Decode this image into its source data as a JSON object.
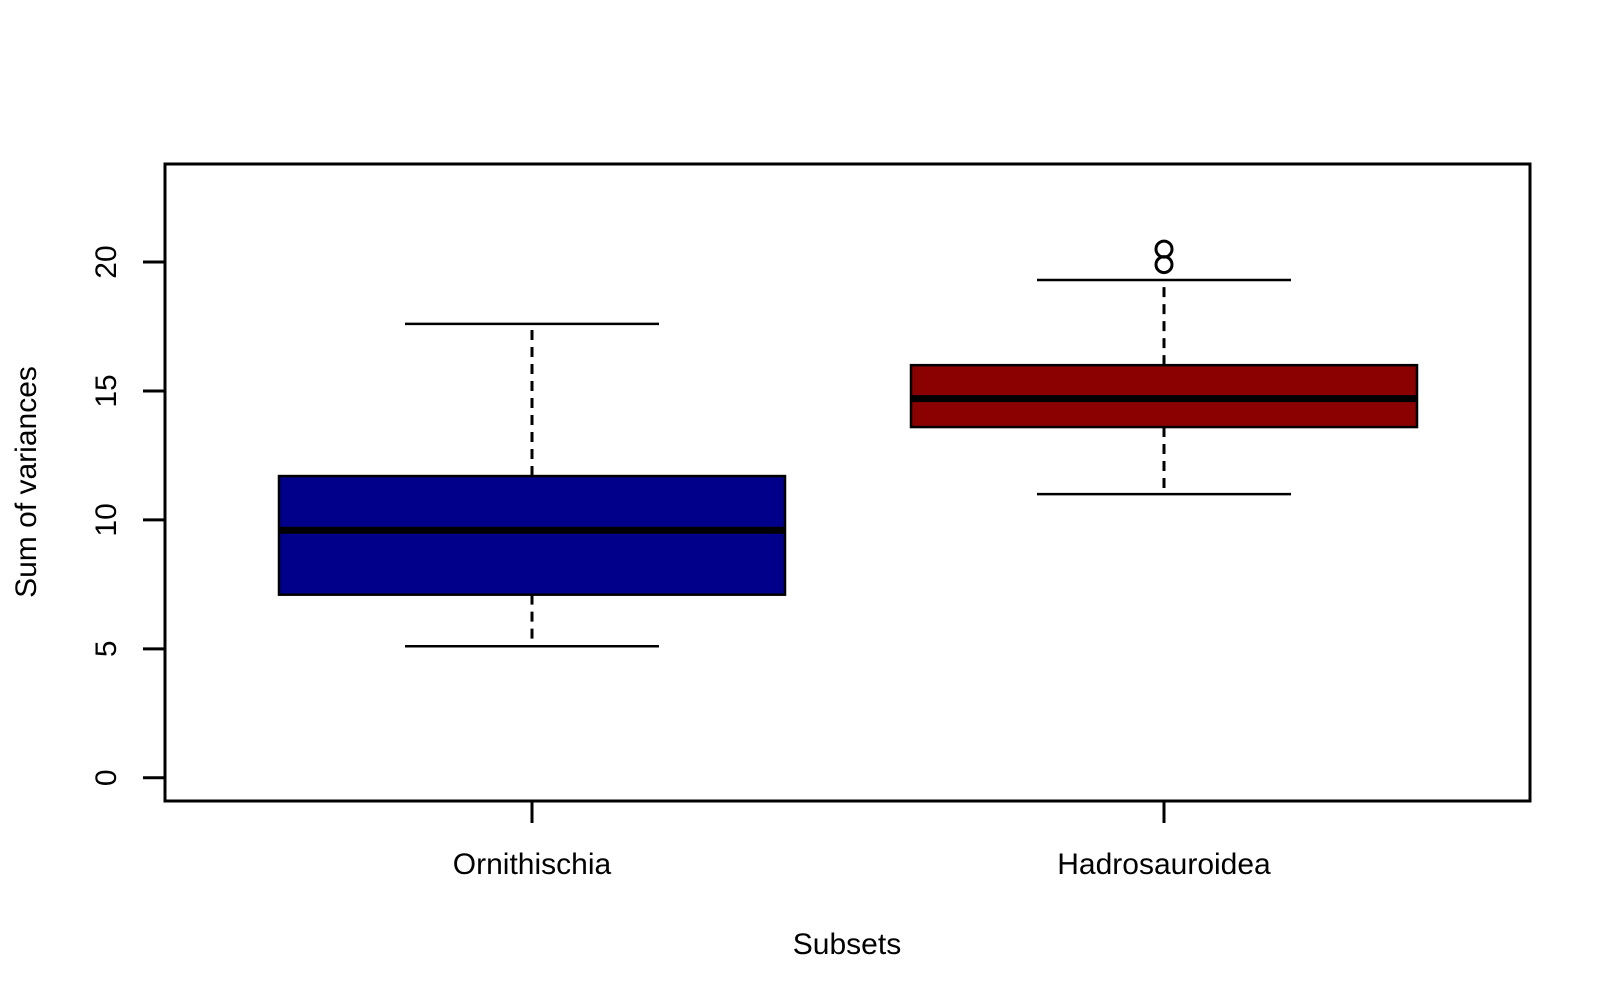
{
  "chart_data": {
    "type": "boxplot",
    "title": "",
    "xlabel": "Subsets",
    "ylabel": "Sum of variances",
    "ylim": [
      -0.9,
      23.8
    ],
    "yticks": [
      0,
      5,
      10,
      15,
      20
    ],
    "ytick_labels": [
      "0",
      "5",
      "10",
      "15",
      "20"
    ],
    "grid": false,
    "legend": "none",
    "categories": [
      "Ornithischia",
      "Hadrosauroidea"
    ],
    "series": [
      {
        "category": "Ornithischia",
        "color": "#00008B",
        "whisker_low": 5.1,
        "q1": 7.1,
        "median": 9.6,
        "q3": 11.7,
        "whisker_high": 17.6,
        "outliers": []
      },
      {
        "category": "Hadrosauroidea",
        "color": "#8B0000",
        "whisker_low": 11.0,
        "q1": 13.6,
        "median": 14.7,
        "q3": 16.0,
        "whisker_high": 19.3,
        "outliers": [
          19.9,
          20.5
        ]
      }
    ]
  }
}
